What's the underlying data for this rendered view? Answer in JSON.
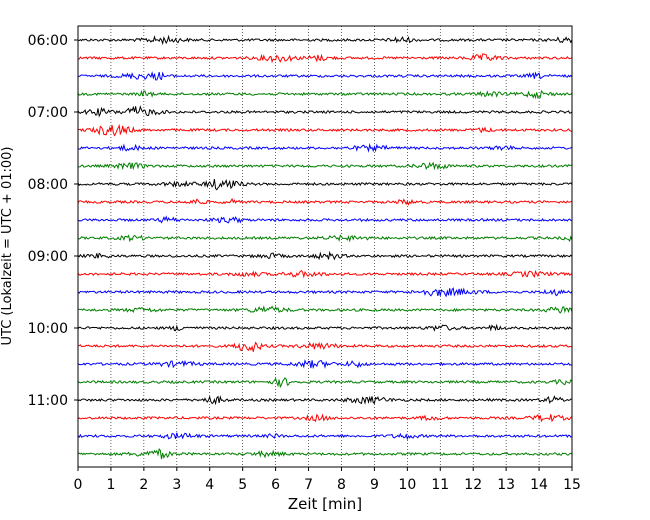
{
  "chart_data": {
    "type": "line",
    "title": "",
    "xlabel": "Zeit  [min]",
    "ylabel": "UTC (Lokalzeit = UTC + 01:00)",
    "xlim": [
      0,
      15
    ],
    "x_ticks": [
      "0",
      "1",
      "2",
      "3",
      "4",
      "5",
      "6",
      "7",
      "8",
      "9",
      "10",
      "11",
      "12",
      "13",
      "14",
      "15"
    ],
    "y_tick_labels": [
      "06:00",
      "07:00",
      "08:00",
      "09:00",
      "10:00",
      "11:00"
    ],
    "row_interval_min": 15,
    "row_count": 24,
    "vertical_grid": true,
    "grid_style": "dotted",
    "trace_colors": [
      "#000000",
      "#ff0000",
      "#0000ff",
      "#008000"
    ],
    "series": [
      {
        "start": "06:00",
        "color": "#000000"
      },
      {
        "start": "06:15",
        "color": "#ff0000"
      },
      {
        "start": "06:30",
        "color": "#0000ff"
      },
      {
        "start": "06:45",
        "color": "#008000"
      },
      {
        "start": "07:00",
        "color": "#000000"
      },
      {
        "start": "07:15",
        "color": "#ff0000"
      },
      {
        "start": "07:30",
        "color": "#0000ff"
      },
      {
        "start": "07:45",
        "color": "#008000"
      },
      {
        "start": "08:00",
        "color": "#000000"
      },
      {
        "start": "08:15",
        "color": "#ff0000"
      },
      {
        "start": "08:30",
        "color": "#0000ff"
      },
      {
        "start": "08:45",
        "color": "#008000"
      },
      {
        "start": "09:00",
        "color": "#000000"
      },
      {
        "start": "09:15",
        "color": "#ff0000"
      },
      {
        "start": "09:30",
        "color": "#0000ff"
      },
      {
        "start": "09:45",
        "color": "#008000"
      },
      {
        "start": "10:00",
        "color": "#000000"
      },
      {
        "start": "10:15",
        "color": "#ff0000"
      },
      {
        "start": "10:30",
        "color": "#0000ff"
      },
      {
        "start": "10:45",
        "color": "#008000"
      },
      {
        "start": "11:00",
        "color": "#000000"
      },
      {
        "start": "11:15",
        "color": "#ff0000"
      },
      {
        "start": "11:30",
        "color": "#0000ff"
      },
      {
        "start": "11:45",
        "color": "#008000"
      }
    ]
  }
}
